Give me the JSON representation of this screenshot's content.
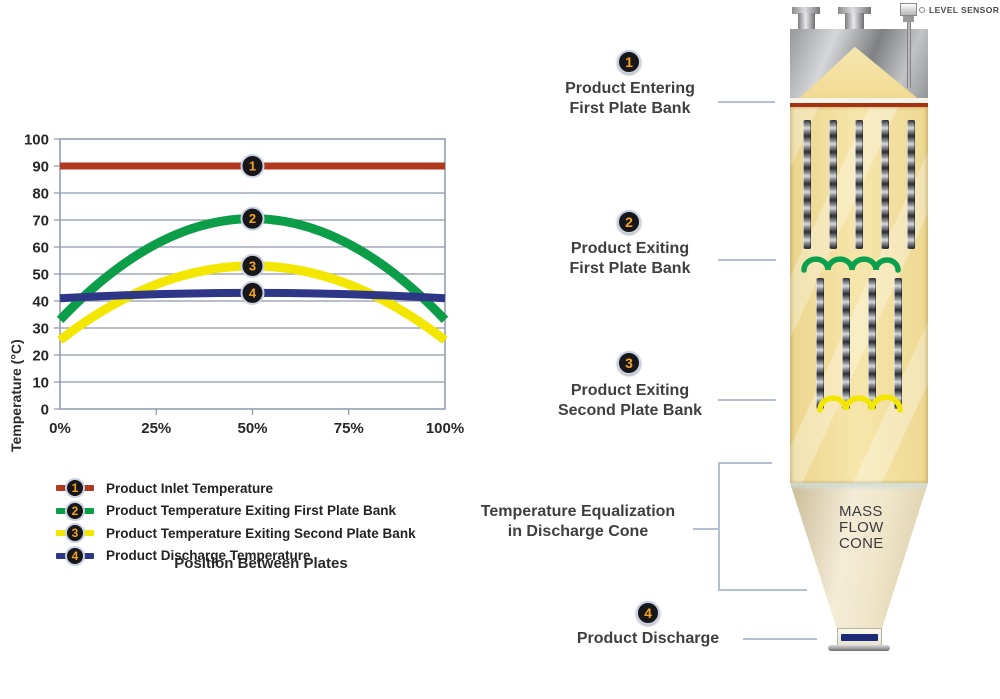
{
  "chart_data": {
    "type": "line",
    "title": "",
    "xlabel": "Position Between Plates",
    "ylabel": "Temperature (°C)",
    "ylim": [
      0,
      100
    ],
    "ytick_step": 10,
    "x_ticks": [
      "0%",
      "25%",
      "50%",
      "75%",
      "100%"
    ],
    "grid": true,
    "grid_color": "#8e97ab",
    "legend_position": "below",
    "x_definition": "position between plates, 0% to 100%",
    "series": [
      {
        "id": 1,
        "name": "Product Inlet Temperature",
        "color": "#b0391f",
        "width": 7,
        "shape": "flat",
        "start": 90,
        "mid": 90,
        "end": 90
      },
      {
        "id": 2,
        "name": "Product Temperature Exiting First Plate Bank",
        "color": "#0c9d49",
        "width": 9,
        "shape": "parabola",
        "start": 33,
        "mid": 70.5,
        "end": 33
      },
      {
        "id": 3,
        "name": "Product Temperature Exiting Second Plate Bank",
        "color": "#f3e600",
        "width": 9,
        "shape": "parabola",
        "start": 25.5,
        "mid": 53,
        "end": 25.5
      },
      {
        "id": 4,
        "name": "Product Discharge Temperature",
        "color": "#2e3787",
        "width": 8,
        "shape": "parabola",
        "start": 41,
        "mid": 43,
        "end": 41
      }
    ],
    "marker_x_percent": 50
  },
  "diagram": {
    "level_sensor": "LEVEL SENSOR",
    "mass_flow_cone": [
      "MASS",
      "FLOW",
      "CONE"
    ],
    "callouts": [
      {
        "num": "1",
        "line1": "Product Entering",
        "line2": "First Plate Bank"
      },
      {
        "num": "2",
        "line1": "Product Exiting",
        "line2": "First Plate Bank"
      },
      {
        "num": "3",
        "line1": "Product Exiting",
        "line2": "Second Plate Bank"
      },
      {
        "num": "4",
        "line1": "Product Discharge",
        "line2": ""
      },
      {
        "num": "",
        "line1": "Temperature Equalization",
        "line2": "in Discharge Cone"
      }
    ]
  },
  "colors": {
    "number_orange": "#f5a41c",
    "circle_black": "#17171a",
    "circle_ring": "#c9d1e2",
    "connector": "#b4bed0",
    "inlet_line_red": "#a63214",
    "discharge_bar_navy": "#1d2a78",
    "vessel_tan": "#f3df9e",
    "cone_cream": "#efe6cd",
    "label_text": "#3f3f41"
  }
}
